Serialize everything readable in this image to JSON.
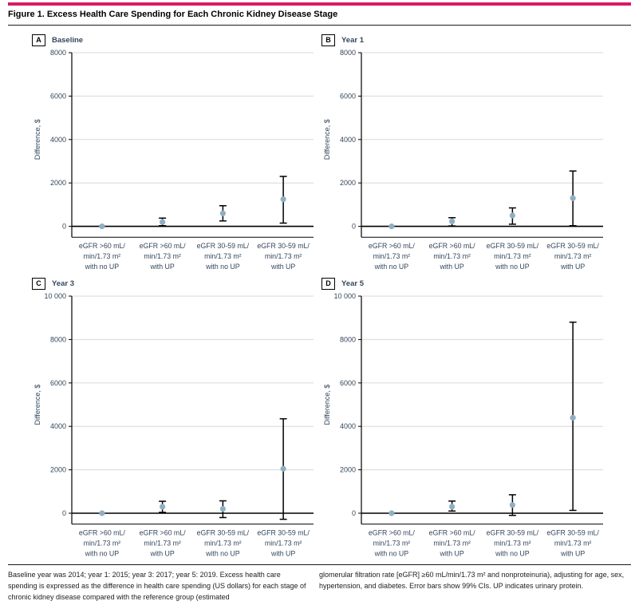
{
  "figure": {
    "title": "Figure 1. Excess Health Care Spending for Each Chronic Kidney Disease Stage"
  },
  "colors": {
    "accent": "#d81a66",
    "marker": "#8fb0c3",
    "grid": "#d8d8d8",
    "axis": "#000000",
    "zero_line": "#000000",
    "tick_text": "#33475c",
    "label_text": "#33475c"
  },
  "footnotes": {
    "left": "Baseline year was 2014; year 1: 2015; year 3: 2017; year 5: 2019. Excess health care spending is expressed as the difference in health care spending (US dollars) for each stage of chronic kidney disease compared with the reference group (estimated",
    "right": "glomerular filtration rate [eGFR] ≥60 mL/min/1.73 m² and nonproteinuria), adjusting for age, sex, hypertension, and diabetes. Error bars show 99% CIs. UP indicates urinary protein."
  },
  "chart_data": [
    {
      "type": "scatter",
      "panel": "A",
      "title": "Baseline",
      "ylabel": "Difference, $",
      "ylim": [
        -500,
        8000
      ],
      "yticks": [
        0,
        2000,
        4000,
        6000,
        8000
      ],
      "ytick_labels": [
        "0",
        "2000",
        "4000",
        "6000",
        "8000"
      ],
      "grid": true,
      "categories": [
        [
          "eGFR >60 mL/",
          "min/1.73 m²",
          "with no UP"
        ],
        [
          "eGFR >60 mL/",
          "min/1.73 m²",
          "with UP"
        ],
        [
          "eGFR 30-59 mL/",
          "min/1.73 m²",
          "with no UP"
        ],
        [
          "eGFR 30-59 mL/",
          "min/1.73 m²",
          "with UP"
        ]
      ],
      "points": [
        {
          "value": 0,
          "lo": 0,
          "hi": 0,
          "reference": true
        },
        {
          "value": 200,
          "lo": 30,
          "hi": 380,
          "reference": false
        },
        {
          "value": 600,
          "lo": 250,
          "hi": 950,
          "reference": false
        },
        {
          "value": 1250,
          "lo": 150,
          "hi": 2300,
          "reference": false
        }
      ]
    },
    {
      "type": "scatter",
      "panel": "B",
      "title": "Year 1",
      "ylabel": "Difference, $",
      "ylim": [
        -500,
        8000
      ],
      "yticks": [
        0,
        2000,
        4000,
        6000,
        8000
      ],
      "ytick_labels": [
        "0",
        "2000",
        "4000",
        "6000",
        "8000"
      ],
      "grid": true,
      "categories": [
        [
          "eGFR >60 mL/",
          "min/1.73 m²",
          "with no UP"
        ],
        [
          "eGFR >60 mL/",
          "min/1.73 m²",
          "with UP"
        ],
        [
          "eGFR 30-59 mL/",
          "min/1.73 m²",
          "with no UP"
        ],
        [
          "eGFR 30-59 mL/",
          "min/1.73 m²",
          "with UP"
        ]
      ],
      "points": [
        {
          "value": 0,
          "lo": 0,
          "hi": 0,
          "reference": true
        },
        {
          "value": 230,
          "lo": 20,
          "hi": 400,
          "reference": false
        },
        {
          "value": 500,
          "lo": 100,
          "hi": 850,
          "reference": false
        },
        {
          "value": 1300,
          "lo": 30,
          "hi": 2550,
          "reference": false
        }
      ]
    },
    {
      "type": "scatter",
      "panel": "C",
      "title": "Year 3",
      "ylabel": "Difference, $",
      "ylim": [
        -500,
        10000
      ],
      "yticks": [
        0,
        2000,
        4000,
        6000,
        8000,
        10000
      ],
      "ytick_labels": [
        "0",
        "2000",
        "4000",
        "6000",
        "8000",
        "10 000"
      ],
      "grid": true,
      "categories": [
        [
          "eGFR >60 mL/",
          "min/1.73 m²",
          "with no UP"
        ],
        [
          "eGFR >60 mL/",
          "min/1.73 m²",
          "with UP"
        ],
        [
          "eGFR 30-59 mL/",
          "min/1.73 m²",
          "with no UP"
        ],
        [
          "eGFR 30-59 mL/",
          "min/1.73 m²",
          "with UP"
        ]
      ],
      "points": [
        {
          "value": 0,
          "lo": 0,
          "hi": 0,
          "reference": true
        },
        {
          "value": 300,
          "lo": 40,
          "hi": 550,
          "reference": false
        },
        {
          "value": 200,
          "lo": -200,
          "hi": 570,
          "reference": false
        },
        {
          "value": 2050,
          "lo": -280,
          "hi": 4350,
          "reference": false
        }
      ]
    },
    {
      "type": "scatter",
      "panel": "D",
      "title": "Year 5",
      "ylabel": "Difference, $",
      "ylim": [
        -500,
        10000
      ],
      "yticks": [
        0,
        2000,
        4000,
        6000,
        8000,
        10000
      ],
      "ytick_labels": [
        "0",
        "2000",
        "4000",
        "6000",
        "8000",
        "10 000"
      ],
      "grid": true,
      "categories": [
        [
          "eGFR >60 mL/",
          "min/1.73 m²",
          "with no UP"
        ],
        [
          "eGFR >60 mL/",
          "min/1.73 m²",
          "with UP"
        ],
        [
          "eGFR 30-59 mL/",
          "min/1.73 m²",
          "with no UP"
        ],
        [
          "eGFR 30-59 mL/",
          "min/1.73 m²",
          "with UP"
        ]
      ],
      "points": [
        {
          "value": 0,
          "lo": 0,
          "hi": 0,
          "reference": true
        },
        {
          "value": 300,
          "lo": 100,
          "hi": 560,
          "reference": false
        },
        {
          "value": 380,
          "lo": -100,
          "hi": 850,
          "reference": false
        },
        {
          "value": 4400,
          "lo": 130,
          "hi": 8800,
          "reference": false
        }
      ]
    }
  ]
}
